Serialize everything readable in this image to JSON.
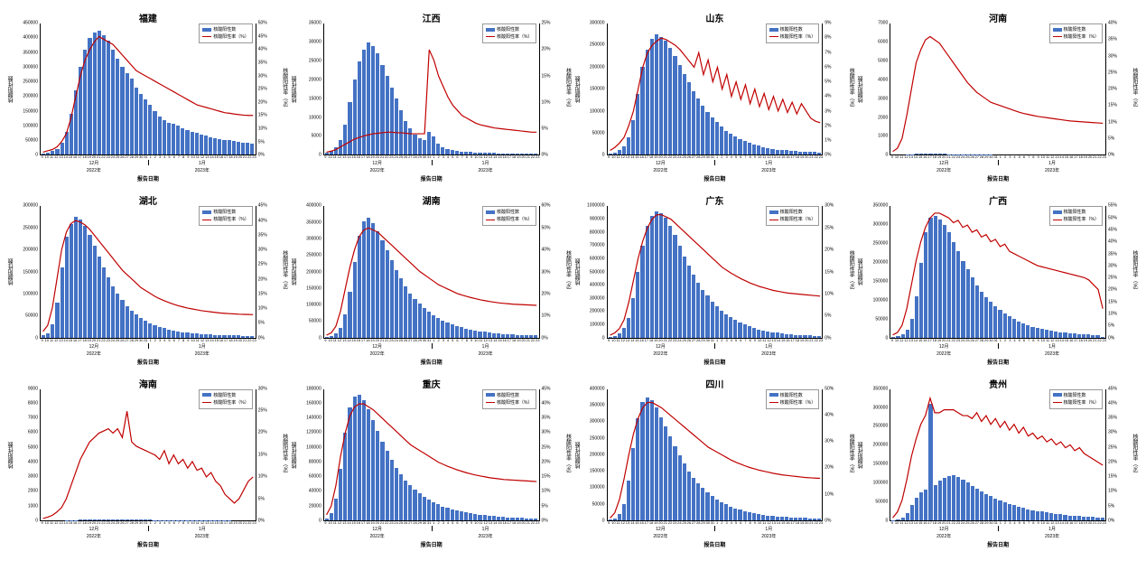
{
  "common": {
    "bar_color": "#4472c4",
    "line_color": "#c00000",
    "line_width": 1.2,
    "legend_bar": "核酸阳性数",
    "legend_line": "核酸阳性率（%）",
    "yl_label": "核酸阳性数",
    "yr_label": "核酸阳性率（%）",
    "x_label": "报告日期",
    "x_days": [
      "9",
      "10",
      "11",
      "12",
      "13",
      "14",
      "15",
      "16",
      "17",
      "18",
      "19",
      "20",
      "21",
      "22",
      "23",
      "24",
      "25",
      "26",
      "27",
      "28",
      "29",
      "30",
      "31",
      "1",
      "2",
      "3",
      "4",
      "5",
      "6",
      "7",
      "8",
      "9",
      "10",
      "11",
      "12",
      "13",
      "14",
      "15",
      "16",
      "17",
      "18",
      "19",
      "20",
      "21",
      "22",
      "23"
    ],
    "x_months": [
      "12月",
      "1月"
    ],
    "x_years": [
      "2022年",
      "2023年"
    ],
    "month_split_index": 23
  },
  "panels": [
    {
      "title": "福建",
      "yl_max": 450000,
      "yl_step": 50000,
      "yr_max": 50,
      "yr_step": 5,
      "bars": [
        5,
        8,
        12,
        20,
        40,
        80,
        140,
        220,
        300,
        360,
        400,
        420,
        425,
        410,
        390,
        360,
        330,
        300,
        280,
        260,
        230,
        210,
        190,
        170,
        150,
        130,
        120,
        110,
        105,
        100,
        90,
        85,
        80,
        75,
        70,
        65,
        60,
        58,
        55,
        52,
        50,
        48,
        45,
        42,
        40,
        38
      ],
      "line": [
        1,
        1.5,
        2,
        3,
        5,
        8,
        14,
        22,
        30,
        36,
        40,
        43,
        45,
        44,
        43,
        42,
        40,
        38,
        36,
        34,
        32,
        31,
        30,
        29,
        28,
        27,
        26,
        25,
        24,
        23,
        22,
        21,
        20,
        19,
        18.5,
        18,
        17.5,
        17,
        16.5,
        16,
        15.8,
        15.5,
        15.3,
        15.1,
        15,
        15
      ]
    },
    {
      "title": "江西",
      "yl_max": 35000,
      "yl_step": 5000,
      "yr_max": 25,
      "yr_step": 5,
      "bars": [
        0.5,
        1,
        2,
        4,
        8,
        14,
        20,
        25,
        28,
        30,
        29,
        27,
        24,
        21,
        18,
        15,
        12,
        9,
        7,
        5.5,
        4.5,
        4,
        6,
        5,
        3,
        2,
        1.5,
        1.2,
        1,
        0.9,
        0.8,
        0.7,
        0.6,
        0.55,
        0.5,
        0.48,
        0.45,
        0.42,
        0.4,
        0.38,
        0.35,
        0.33,
        0.31,
        0.3,
        0.29,
        0.28
      ],
      "line": [
        0.5,
        0.7,
        1,
        1.5,
        2,
        2.5,
        3,
        3.3,
        3.6,
        3.8,
        4,
        4.1,
        4.2,
        4.3,
        4.3,
        4.2,
        4.2,
        4.1,
        4,
        4,
        4,
        4,
        20,
        18,
        15,
        13,
        11,
        9.5,
        8.5,
        7.5,
        7,
        6.5,
        6,
        5.7,
        5.5,
        5.3,
        5.1,
        5,
        4.9,
        4.8,
        4.7,
        4.6,
        4.5,
        4.4,
        4.3,
        4.3
      ]
    },
    {
      "title": "山东",
      "yl_max": 300000,
      "yl_step": 50000,
      "yr_max": 9,
      "yr_step": 1,
      "bars": [
        2,
        5,
        10,
        20,
        40,
        80,
        140,
        200,
        240,
        265,
        275,
        270,
        260,
        245,
        225,
        205,
        185,
        165,
        145,
        128,
        112,
        98,
        85,
        74,
        64,
        55,
        48,
        42,
        36,
        31,
        27,
        24,
        21,
        18,
        16,
        14,
        12,
        11,
        10,
        9,
        8,
        7.5,
        7,
        6.5,
        6,
        5.5
      ],
      "line": [
        0.3,
        0.5,
        0.8,
        1.2,
        2,
        3,
        4.5,
        6,
        7,
        7.5,
        7.8,
        8,
        7.9,
        7.7,
        7.5,
        7.2,
        6.8,
        6.4,
        6,
        7,
        5.5,
        6.5,
        5,
        6,
        4.5,
        5.5,
        4,
        5,
        3.8,
        4.8,
        3.5,
        4.5,
        3.3,
        4.2,
        3.1,
        4,
        3,
        3.8,
        2.9,
        3.6,
        2.8,
        3.5,
        3,
        2.5,
        2.3,
        2.2
      ]
    },
    {
      "title": "河南",
      "yl_max": 7000,
      "yl_step": 1000,
      "yr_max": 40,
      "yr_step": 5,
      "bars": [
        0.5,
        1,
        3,
        10,
        30,
        50,
        45,
        55,
        60,
        62,
        58,
        50,
        40,
        30,
        22,
        16,
        12,
        9,
        7,
        5.5,
        4.5,
        3.8,
        3.2,
        2.8,
        2.4,
        2.1,
        1.8,
        1.6,
        1.4,
        1.25,
        1.1,
        1,
        0.9,
        0.8,
        0.75,
        0.7,
        0.65,
        0.6,
        0.55,
        0.5,
        0.48,
        0.45,
        0.43,
        0.41,
        0.4,
        0.38
      ],
      "line": [
        1,
        2,
        5,
        12,
        20,
        28,
        32,
        35,
        36,
        35,
        34,
        32,
        30,
        28,
        26,
        24,
        22,
        20.5,
        19,
        18,
        17,
        16,
        15.5,
        15,
        14.5,
        14,
        13.5,
        13,
        12.6,
        12.3,
        12,
        11.7,
        11.5,
        11.3,
        11.1,
        10.9,
        10.7,
        10.5,
        10.3,
        10.2,
        10.1,
        10,
        9.9,
        9.8,
        9.7,
        9.6
      ]
    },
    {
      "title": "湖北",
      "yl_max": 300000,
      "yl_step": 50000,
      "yr_max": 45,
      "yr_step": 5,
      "bars": [
        5,
        10,
        30,
        80,
        160,
        230,
        260,
        275,
        270,
        255,
        235,
        210,
        185,
        160,
        138,
        118,
        100,
        85,
        72,
        62,
        53,
        45,
        38,
        33,
        28,
        24,
        21,
        18,
        16,
        14,
        12,
        11,
        10,
        9,
        8,
        7.5,
        7,
        6.5,
        6,
        5.5,
        5,
        4.8,
        4.5,
        4.3,
        4.1,
        4
      ],
      "line": [
        2,
        4,
        10,
        20,
        30,
        36,
        39,
        40,
        39.5,
        38.5,
        37,
        35,
        33,
        31,
        29,
        27,
        25,
        23,
        21.5,
        20,
        18.5,
        17,
        16,
        15,
        14,
        13.2,
        12.5,
        11.9,
        11.3,
        10.8,
        10.4,
        10,
        9.7,
        9.4,
        9.1,
        8.9,
        8.7,
        8.5,
        8.3,
        8.2,
        8.1,
        8,
        7.9,
        7.85,
        7.8,
        7.75
      ]
    },
    {
      "title": "湖南",
      "yl_max": 400000,
      "yl_step": 50000,
      "yr_max": 60,
      "yr_step": 10,
      "bars": [
        2,
        5,
        12,
        30,
        70,
        140,
        230,
        310,
        355,
        365,
        350,
        325,
        295,
        265,
        235,
        205,
        180,
        155,
        135,
        118,
        103,
        90,
        78,
        68,
        60,
        52,
        46,
        40,
        35,
        31,
        27,
        24,
        21,
        19,
        17,
        15,
        13.5,
        12,
        11,
        10,
        9,
        8.5,
        8,
        7.5,
        7,
        6.5
      ],
      "line": [
        1,
        2,
        5,
        12,
        22,
        32,
        40,
        46,
        49,
        50,
        49,
        48,
        46,
        44,
        42,
        40,
        38,
        36,
        34,
        32,
        30,
        28.5,
        27,
        25.5,
        24,
        23,
        22,
        21,
        20,
        19.3,
        18.7,
        18.1,
        17.6,
        17.1,
        16.7,
        16.3,
        16,
        15.7,
        15.5,
        15.3,
        15.1,
        15,
        14.9,
        14.8,
        14.7,
        14.6
      ]
    },
    {
      "title": "广东",
      "yl_max": 1000000,
      "yl_step": 100000,
      "yr_max": 30,
      "yr_step": 5,
      "bars": [
        5,
        12,
        30,
        70,
        150,
        300,
        500,
        700,
        850,
        930,
        960,
        950,
        910,
        850,
        780,
        700,
        620,
        550,
        480,
        420,
        365,
        318,
        275,
        238,
        205,
        178,
        153,
        132,
        114,
        98,
        85,
        73,
        63,
        55,
        48,
        42,
        36,
        32,
        28,
        24,
        21,
        19,
        17,
        15,
        13,
        12
      ],
      "line": [
        0.5,
        1,
        2,
        4,
        8,
        13,
        18,
        22,
        25,
        27,
        28,
        28,
        27.5,
        27,
        26,
        25,
        24,
        23,
        22,
        21,
        20,
        19,
        18,
        17,
        16,
        15.3,
        14.6,
        14,
        13.4,
        12.9,
        12.4,
        12,
        11.6,
        11.3,
        11,
        10.7,
        10.5,
        10.3,
        10.1,
        10,
        9.9,
        9.8,
        9.7,
        9.6,
        9.5,
        9.4
      ]
    },
    {
      "title": "广西",
      "yl_max": 350000,
      "yl_step": 50000,
      "yr_max": 55,
      "yr_step": 5,
      "bars": [
        1,
        3,
        8,
        20,
        50,
        110,
        200,
        280,
        320,
        325,
        315,
        300,
        280,
        255,
        230,
        205,
        182,
        160,
        140,
        123,
        108,
        95,
        83,
        73,
        64,
        56,
        49,
        43,
        38,
        33,
        29,
        26,
        23,
        20,
        18,
        16,
        14.5,
        13,
        11.5,
        10.5,
        9.5,
        8.5,
        8,
        7.5,
        7,
        1
      ],
      "line": [
        1,
        2,
        5,
        12,
        22,
        32,
        40,
        46,
        50,
        52,
        52,
        51,
        50,
        48,
        49,
        46,
        47,
        44,
        45,
        42,
        43,
        40,
        41,
        38,
        39,
        36,
        35,
        34,
        33,
        32,
        31,
        30,
        29.5,
        29,
        28.5,
        28,
        27.5,
        27,
        26.5,
        26,
        25.5,
        25,
        24,
        22,
        20,
        12
      ]
    },
    {
      "title": "海南",
      "yl_max": 9000,
      "yl_step": 1000,
      "yr_max": 30,
      "yr_step": 5,
      "bars": [
        0.3,
        0.5,
        1,
        2,
        4,
        8,
        15,
        25,
        38,
        50,
        60,
        68,
        72,
        70,
        75,
        65,
        60,
        55,
        85,
        50,
        45,
        40,
        36,
        32,
        28,
        25,
        22,
        20,
        18,
        16,
        14,
        15,
        13,
        11,
        10,
        9,
        8,
        7.5,
        7,
        6,
        5,
        4,
        3.5,
        3,
        2.5,
        2
      ],
      "line": [
        0.5,
        0.8,
        1.2,
        2,
        3,
        5,
        8,
        11,
        14,
        16,
        18,
        19,
        20,
        20.5,
        21,
        20,
        21,
        19,
        25,
        18,
        17,
        16.5,
        16,
        15.5,
        15,
        14,
        16,
        13,
        15,
        13,
        14,
        12,
        13.5,
        11.5,
        12,
        10,
        11,
        9,
        8,
        6,
        5,
        4,
        5,
        7,
        9,
        10
      ]
    },
    {
      "title": "重庆",
      "yl_max": 180000,
      "yl_step": 20000,
      "yr_max": 45,
      "yr_step": 5,
      "bars": [
        3,
        10,
        30,
        70,
        120,
        155,
        170,
        172,
        165,
        152,
        138,
        122,
        108,
        95,
        83,
        72,
        63,
        55,
        48,
        42,
        37,
        32,
        28,
        25,
        22,
        19,
        17,
        15,
        13.5,
        12,
        10.7,
        9.6,
        8.6,
        7.7,
        6.9,
        6.2,
        5.6,
        5,
        4.5,
        4.1,
        3.7,
        3.4,
        3.1,
        2.8,
        2.6,
        2.4
      ],
      "line": [
        2,
        5,
        12,
        22,
        30,
        36,
        39,
        40,
        40,
        39,
        38,
        36.5,
        35,
        33.5,
        32,
        30.5,
        29,
        27.5,
        26,
        25,
        24,
        23,
        22,
        21,
        20,
        19.3,
        18.6,
        18,
        17.4,
        16.9,
        16.4,
        16,
        15.6,
        15.3,
        15,
        14.7,
        14.5,
        14.3,
        14.1,
        14,
        13.9,
        13.8,
        13.7,
        13.6,
        13.5,
        13.4
      ]
    },
    {
      "title": "四川",
      "yl_max": 400000,
      "yl_step": 50000,
      "yr_max": 50,
      "yr_step": 10,
      "bars": [
        2,
        6,
        18,
        50,
        120,
        220,
        310,
        360,
        375,
        365,
        345,
        315,
        285,
        255,
        225,
        198,
        173,
        150,
        130,
        113,
        98,
        85,
        74,
        64,
        56,
        49,
        42,
        37,
        32,
        28,
        25,
        22,
        19,
        17,
        15,
        13.5,
        12,
        11,
        10,
        9,
        8,
        7.5,
        7,
        6.5,
        6,
        5.5
      ],
      "line": [
        1,
        3,
        8,
        16,
        25,
        33,
        39,
        43,
        45,
        45,
        44,
        43,
        41.5,
        40,
        38.5,
        37,
        35.5,
        34,
        32.5,
        31,
        29.5,
        28,
        27,
        26,
        25,
        24,
        23,
        22.2,
        21.5,
        20.8,
        20.2,
        19.7,
        19.2,
        18.8,
        18.4,
        18,
        17.7,
        17.4,
        17.2,
        17,
        16.8,
        16.6,
        16.4,
        16.3,
        16.2,
        16.1
      ]
    },
    {
      "title": "贵州",
      "yl_max": 350000,
      "yl_step": 50000,
      "yr_max": 45,
      "yr_step": 5,
      "bars": [
        1,
        3,
        8,
        20,
        40,
        60,
        75,
        82,
        310,
        95,
        105,
        112,
        118,
        120,
        115,
        108,
        100,
        92,
        84,
        77,
        70,
        64,
        58,
        53,
        48,
        44,
        40,
        36,
        33,
        30,
        27,
        25,
        23,
        21,
        19,
        17.5,
        16,
        14.5,
        13.2,
        12,
        11,
        10,
        9.2,
        8.5,
        7.8,
        7.2
      ],
      "line": [
        1,
        3,
        7,
        14,
        22,
        28,
        33,
        36,
        42,
        37,
        37,
        38,
        38,
        38,
        37,
        36,
        36,
        35,
        37,
        34,
        36,
        33,
        35,
        32,
        34,
        31,
        33,
        30,
        32,
        29,
        30,
        28,
        29,
        27,
        28,
        26,
        27,
        25,
        26,
        24,
        25,
        23,
        22,
        21,
        20,
        19
      ]
    }
  ]
}
